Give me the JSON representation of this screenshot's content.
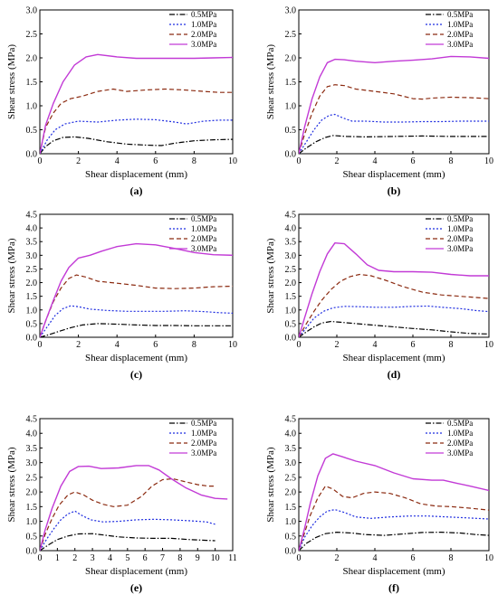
{
  "style": {
    "series_colors": [
      "#000000",
      "#1f2de0",
      "#8b2a10",
      "#c23ad6"
    ],
    "series_dash": [
      "6,2,1.5,2",
      "2,2",
      "5,3",
      ""
    ]
  },
  "chart_data": [
    {
      "type": "line",
      "panel_label": "(a)",
      "xlabel": "Shear displacement (mm)",
      "ylabel": "Shear stress (MPa)",
      "xlim": [
        0,
        10
      ],
      "ylim": [
        0,
        3.0
      ],
      "xticks": [
        0,
        2,
        4,
        6,
        8,
        10
      ],
      "yticks": [
        0.0,
        0.5,
        1.0,
        1.5,
        2.0,
        2.5,
        3.0
      ],
      "ytick_labels": [
        "0.0",
        "0.5",
        "1.0",
        "1.5",
        "2.0",
        "2.5",
        "3.0"
      ],
      "legend_position": "top-right",
      "series": [
        {
          "name": "0.5MPa",
          "x": [
            0,
            0.3,
            0.7,
            1.2,
            1.8,
            2.5,
            3.5,
            4.5,
            5.5,
            6.3,
            7.0,
            8.0,
            9.0,
            10
          ],
          "y": [
            0,
            0.15,
            0.27,
            0.34,
            0.35,
            0.32,
            0.25,
            0.2,
            0.18,
            0.17,
            0.22,
            0.27,
            0.29,
            0.3
          ]
        },
        {
          "name": "1.0MPa",
          "x": [
            0,
            0.4,
            0.8,
            1.3,
            2.0,
            3.0,
            4.0,
            5.0,
            6.0,
            7.0,
            7.6,
            8.5,
            9.3,
            10
          ],
          "y": [
            0,
            0.3,
            0.5,
            0.62,
            0.68,
            0.66,
            0.7,
            0.72,
            0.71,
            0.66,
            0.62,
            0.68,
            0.7,
            0.7
          ]
        },
        {
          "name": "2.0MPa",
          "x": [
            0,
            0.3,
            0.7,
            1.1,
            1.6,
            2.2,
            3.0,
            3.8,
            4.5,
            5.5,
            6.5,
            7.5,
            8.5,
            9.3,
            10
          ],
          "y": [
            0,
            0.55,
            0.85,
            1.05,
            1.15,
            1.2,
            1.3,
            1.35,
            1.3,
            1.33,
            1.35,
            1.33,
            1.3,
            1.28,
            1.28
          ]
        },
        {
          "name": "3.0MPa",
          "x": [
            0,
            0.3,
            0.7,
            1.2,
            1.8,
            2.4,
            3.0,
            4.0,
            5.0,
            6.0,
            7.0,
            8.0,
            9.0,
            10
          ],
          "y": [
            0,
            0.6,
            1.05,
            1.5,
            1.85,
            2.02,
            2.07,
            2.02,
            1.99,
            1.99,
            1.99,
            1.99,
            2.0,
            2.01
          ]
        }
      ]
    },
    {
      "type": "line",
      "panel_label": "(b)",
      "xlabel": "Shear displacement (mm)",
      "ylabel": "Shear stress (MPa)",
      "xlim": [
        0,
        10
      ],
      "ylim": [
        0,
        3.0
      ],
      "xticks": [
        0,
        2,
        4,
        6,
        8,
        10
      ],
      "yticks": [
        0.0,
        0.5,
        1.0,
        1.5,
        2.0,
        2.5,
        3.0
      ],
      "ytick_labels": [
        "0.0",
        "0.5",
        "1.0",
        "1.5",
        "2.0",
        "2.5",
        "3.0"
      ],
      "legend_position": "top-right",
      "series": [
        {
          "name": "0.5MPa",
          "x": [
            0,
            0.4,
            0.9,
            1.4,
            1.8,
            2.5,
            3.5,
            5.0,
            6.5,
            8.0,
            9.0,
            10
          ],
          "y": [
            0,
            0.12,
            0.25,
            0.34,
            0.38,
            0.36,
            0.35,
            0.36,
            0.37,
            0.36,
            0.36,
            0.36
          ]
        },
        {
          "name": "1.0MPa",
          "x": [
            0,
            0.4,
            0.8,
            1.2,
            1.6,
            1.9,
            2.3,
            2.8,
            3.5,
            4.5,
            5.5,
            6.5,
            7.5,
            8.5,
            10
          ],
          "y": [
            0,
            0.25,
            0.5,
            0.7,
            0.8,
            0.82,
            0.75,
            0.68,
            0.68,
            0.66,
            0.66,
            0.67,
            0.67,
            0.68,
            0.68
          ]
        },
        {
          "name": "2.0MPa",
          "x": [
            0,
            0.3,
            0.7,
            1.1,
            1.5,
            1.9,
            2.4,
            3.0,
            4.0,
            5.0,
            6.0,
            6.5,
            7.0,
            8.0,
            9.0,
            10
          ],
          "y": [
            0,
            0.4,
            0.85,
            1.2,
            1.4,
            1.44,
            1.42,
            1.35,
            1.3,
            1.25,
            1.15,
            1.14,
            1.16,
            1.18,
            1.17,
            1.15
          ]
        },
        {
          "name": "3.0MPa",
          "x": [
            0,
            0.3,
            0.7,
            1.1,
            1.5,
            1.9,
            2.4,
            3.0,
            4.0,
            5.0,
            6.0,
            7.0,
            8.0,
            9.0,
            10
          ],
          "y": [
            0,
            0.55,
            1.15,
            1.6,
            1.9,
            1.97,
            1.96,
            1.93,
            1.9,
            1.93,
            1.95,
            1.98,
            2.03,
            2.02,
            1.99
          ]
        }
      ]
    },
    {
      "type": "line",
      "panel_label": "(c)",
      "xlabel": "Shear displacement (mm)",
      "ylabel": "Shear stress (MPa)",
      "xlim": [
        0,
        10
      ],
      "ylim": [
        0,
        4.5
      ],
      "xticks": [
        0,
        2,
        4,
        6,
        8,
        10
      ],
      "yticks": [
        0.0,
        0.5,
        1.0,
        1.5,
        2.0,
        2.5,
        3.0,
        3.5,
        4.0,
        4.5
      ],
      "ytick_labels": [
        "0.0",
        "0.5",
        "1.0",
        "1.5",
        "2.0",
        "2.5",
        "3.0",
        "3.5",
        "4.0",
        "4.5"
      ],
      "legend_position": "top-right",
      "series": [
        {
          "name": "0.5MPa",
          "x": [
            0,
            0.5,
            1.0,
            1.6,
            2.2,
            3.0,
            4.0,
            5.0,
            6.0,
            7.0,
            8.0,
            9.0,
            10
          ],
          "y": [
            0,
            0.1,
            0.22,
            0.35,
            0.45,
            0.5,
            0.48,
            0.45,
            0.43,
            0.43,
            0.42,
            0.42,
            0.42
          ]
        },
        {
          "name": "1.0MPa",
          "x": [
            0,
            0.4,
            0.8,
            1.2,
            1.6,
            2.0,
            2.6,
            3.5,
            4.5,
            5.5,
            6.5,
            7.5,
            8.5,
            9.3,
            10
          ],
          "y": [
            0,
            0.4,
            0.8,
            1.05,
            1.15,
            1.12,
            1.03,
            0.98,
            0.95,
            0.95,
            0.95,
            0.97,
            0.94,
            0.9,
            0.88
          ]
        },
        {
          "name": "2.0MPa",
          "x": [
            0,
            0.3,
            0.7,
            1.1,
            1.5,
            1.9,
            2.4,
            3.0,
            4.0,
            5.0,
            6.0,
            7.0,
            8.0,
            9.0,
            10
          ],
          "y": [
            0,
            0.6,
            1.3,
            1.8,
            2.15,
            2.28,
            2.2,
            2.05,
            1.98,
            1.9,
            1.8,
            1.78,
            1.8,
            1.85,
            1.87
          ]
        },
        {
          "name": "3.0MPa",
          "x": [
            0,
            0.3,
            0.7,
            1.1,
            1.5,
            2.0,
            2.6,
            3.2,
            4.0,
            5.0,
            6.0,
            7.0,
            8.0,
            9.0,
            10
          ],
          "y": [
            0,
            0.6,
            1.35,
            2.05,
            2.55,
            2.9,
            3.0,
            3.15,
            3.32,
            3.42,
            3.38,
            3.25,
            3.1,
            3.02,
            3.0
          ]
        }
      ]
    },
    {
      "type": "line",
      "panel_label": "(d)",
      "xlabel": "Shear displacement (mm)",
      "ylabel": "Shear stress (MPa)",
      "xlim": [
        0,
        10
      ],
      "ylim": [
        0,
        4.5
      ],
      "xticks": [
        0,
        2,
        4,
        6,
        8,
        10
      ],
      "yticks": [
        0.0,
        0.5,
        1.0,
        1.5,
        2.0,
        2.5,
        3.0,
        3.5,
        4.0,
        4.5
      ],
      "ytick_labels": [
        "0.0",
        "0.5",
        "1.0",
        "1.5",
        "2.0",
        "2.5",
        "3.0",
        "3.5",
        "4.0",
        "4.5"
      ],
      "legend_position": "top-right",
      "series": [
        {
          "name": "0.5MPa",
          "x": [
            0,
            0.4,
            0.8,
            1.2,
            1.7,
            2.2,
            3.0,
            4.0,
            5.0,
            6.0,
            7.0,
            8.0,
            9.0,
            10
          ],
          "y": [
            0,
            0.2,
            0.38,
            0.52,
            0.58,
            0.55,
            0.5,
            0.44,
            0.38,
            0.32,
            0.27,
            0.2,
            0.14,
            0.12
          ]
        },
        {
          "name": "1.0MPa",
          "x": [
            0,
            0.4,
            0.8,
            1.3,
            1.8,
            2.4,
            3.2,
            4.0,
            5.0,
            6.0,
            6.8,
            7.5,
            8.5,
            9.3,
            10
          ],
          "y": [
            0,
            0.35,
            0.7,
            0.95,
            1.08,
            1.13,
            1.12,
            1.1,
            1.1,
            1.13,
            1.14,
            1.1,
            1.05,
            0.98,
            0.94
          ]
        },
        {
          "name": "2.0MPa",
          "x": [
            0,
            0.4,
            0.8,
            1.2,
            1.7,
            2.2,
            2.7,
            3.2,
            3.8,
            4.5,
            5.5,
            6.5,
            7.5,
            8.5,
            10
          ],
          "y": [
            0,
            0.5,
            0.95,
            1.35,
            1.75,
            2.05,
            2.22,
            2.3,
            2.25,
            2.1,
            1.85,
            1.65,
            1.55,
            1.5,
            1.42
          ]
        },
        {
          "name": "3.0MPa",
          "x": [
            0,
            0.3,
            0.7,
            1.1,
            1.5,
            1.9,
            2.4,
            3.0,
            3.6,
            4.2,
            5.0,
            6.0,
            7.0,
            8.0,
            9.0,
            10
          ],
          "y": [
            0,
            0.7,
            1.6,
            2.4,
            3.05,
            3.45,
            3.42,
            3.05,
            2.65,
            2.45,
            2.4,
            2.4,
            2.38,
            2.3,
            2.25,
            2.25
          ]
        }
      ]
    },
    {
      "type": "line",
      "panel_label": "(e)",
      "xlabel": "Shear displacement (mm)",
      "ylabel": "Shear stress (MPa)",
      "xlim": [
        0,
        11
      ],
      "ylim": [
        0,
        4.5
      ],
      "xticks": [
        0,
        1,
        2,
        3,
        4,
        5,
        6,
        7,
        8,
        9,
        10,
        11
      ],
      "yticks": [
        0.0,
        0.5,
        1.0,
        1.5,
        2.0,
        2.5,
        3.0,
        3.5,
        4.0,
        4.5
      ],
      "ytick_labels": [
        "0.0",
        "0.5",
        "1.0",
        "1.5",
        "2.0",
        "2.5",
        "3.0",
        "3.5",
        "4.0",
        "4.5"
      ],
      "legend_position": "top-right",
      "series": [
        {
          "name": "0.5MPa",
          "x": [
            0,
            0.5,
            1.0,
            1.6,
            2.2,
            3.0,
            3.8,
            4.5,
            5.5,
            6.5,
            7.5,
            8.5,
            9.5,
            10
          ],
          "y": [
            0,
            0.2,
            0.38,
            0.5,
            0.57,
            0.58,
            0.52,
            0.47,
            0.43,
            0.42,
            0.42,
            0.38,
            0.35,
            0.34
          ]
        },
        {
          "name": "1.0MPa",
          "x": [
            0,
            0.4,
            0.8,
            1.2,
            1.6,
            2.0,
            2.4,
            2.9,
            3.6,
            4.5,
            5.5,
            6.5,
            7.5,
            8.5,
            9.5,
            10
          ],
          "y": [
            0,
            0.4,
            0.75,
            1.05,
            1.25,
            1.35,
            1.2,
            1.05,
            0.98,
            1.0,
            1.05,
            1.07,
            1.05,
            1.02,
            0.98,
            0.9
          ]
        },
        {
          "name": "2.0MPa",
          "x": [
            0,
            0.3,
            0.7,
            1.1,
            1.6,
            2.0,
            2.5,
            3.0,
            3.6,
            4.2,
            5.0,
            5.8,
            6.4,
            7.0,
            7.6,
            8.3,
            9.0,
            9.6,
            10
          ],
          "y": [
            0,
            0.55,
            1.1,
            1.55,
            1.9,
            2.0,
            1.9,
            1.72,
            1.58,
            1.5,
            1.55,
            1.85,
            2.2,
            2.42,
            2.45,
            2.35,
            2.25,
            2.2,
            2.2
          ]
        },
        {
          "name": "3.0MPa",
          "x": [
            0,
            0.3,
            0.7,
            1.2,
            1.7,
            2.2,
            2.8,
            3.5,
            4.5,
            5.5,
            6.2,
            6.8,
            7.5,
            8.3,
            9.2,
            10,
            10.7
          ],
          "y": [
            0,
            0.7,
            1.45,
            2.2,
            2.7,
            2.87,
            2.88,
            2.8,
            2.82,
            2.9,
            2.9,
            2.75,
            2.45,
            2.15,
            1.9,
            1.78,
            1.76
          ]
        }
      ]
    },
    {
      "type": "line",
      "panel_label": "(f)",
      "xlabel": "Shear displacement (mm)",
      "ylabel": "Shear stress (MPa)",
      "xlim": [
        0,
        10
      ],
      "ylim": [
        0,
        4.5
      ],
      "xticks": [
        0,
        2,
        4,
        6,
        8,
        10
      ],
      "yticks": [
        0.0,
        0.5,
        1.0,
        1.5,
        2.0,
        2.5,
        3.0,
        3.5,
        4.0,
        4.5
      ],
      "ytick_labels": [
        "0.0",
        "0.5",
        "1.0",
        "1.5",
        "2.0",
        "2.5",
        "3.0",
        "3.5",
        "4.0",
        "4.5"
      ],
      "legend_position": "top-right",
      "series": [
        {
          "name": "0.5MPa",
          "x": [
            0,
            0.4,
            0.9,
            1.4,
            2.0,
            2.8,
            3.5,
            4.5,
            5.5,
            6.5,
            7.5,
            8.5,
            9.3,
            10
          ],
          "y": [
            0,
            0.25,
            0.45,
            0.58,
            0.63,
            0.6,
            0.55,
            0.52,
            0.57,
            0.62,
            0.63,
            0.6,
            0.55,
            0.52
          ]
        },
        {
          "name": "1.0MPa",
          "x": [
            0,
            0.3,
            0.7,
            1.1,
            1.5,
            1.9,
            2.4,
            3.0,
            3.8,
            4.8,
            5.8,
            6.8,
            7.8,
            8.8,
            10
          ],
          "y": [
            0,
            0.45,
            0.85,
            1.15,
            1.35,
            1.4,
            1.3,
            1.15,
            1.1,
            1.15,
            1.18,
            1.18,
            1.15,
            1.12,
            1.08
          ]
        },
        {
          "name": "2.0MPa",
          "x": [
            0,
            0.3,
            0.6,
            1.0,
            1.4,
            1.8,
            2.3,
            2.8,
            3.4,
            4.0,
            4.8,
            5.6,
            6.4,
            7.2,
            8.0,
            9.0,
            10
          ],
          "y": [
            0,
            0.6,
            1.2,
            1.8,
            2.2,
            2.1,
            1.85,
            1.8,
            1.95,
            2.0,
            1.95,
            1.8,
            1.6,
            1.52,
            1.5,
            1.45,
            1.38
          ]
        },
        {
          "name": "3.0MPa",
          "x": [
            0,
            0.3,
            0.6,
            1.0,
            1.4,
            1.8,
            2.3,
            3.0,
            4.0,
            5.0,
            6.0,
            7.0,
            7.6,
            8.3,
            9.0,
            10
          ],
          "y": [
            0,
            0.75,
            1.6,
            2.55,
            3.15,
            3.3,
            3.2,
            3.05,
            2.9,
            2.65,
            2.45,
            2.4,
            2.4,
            2.3,
            2.2,
            2.05
          ]
        }
      ]
    }
  ]
}
